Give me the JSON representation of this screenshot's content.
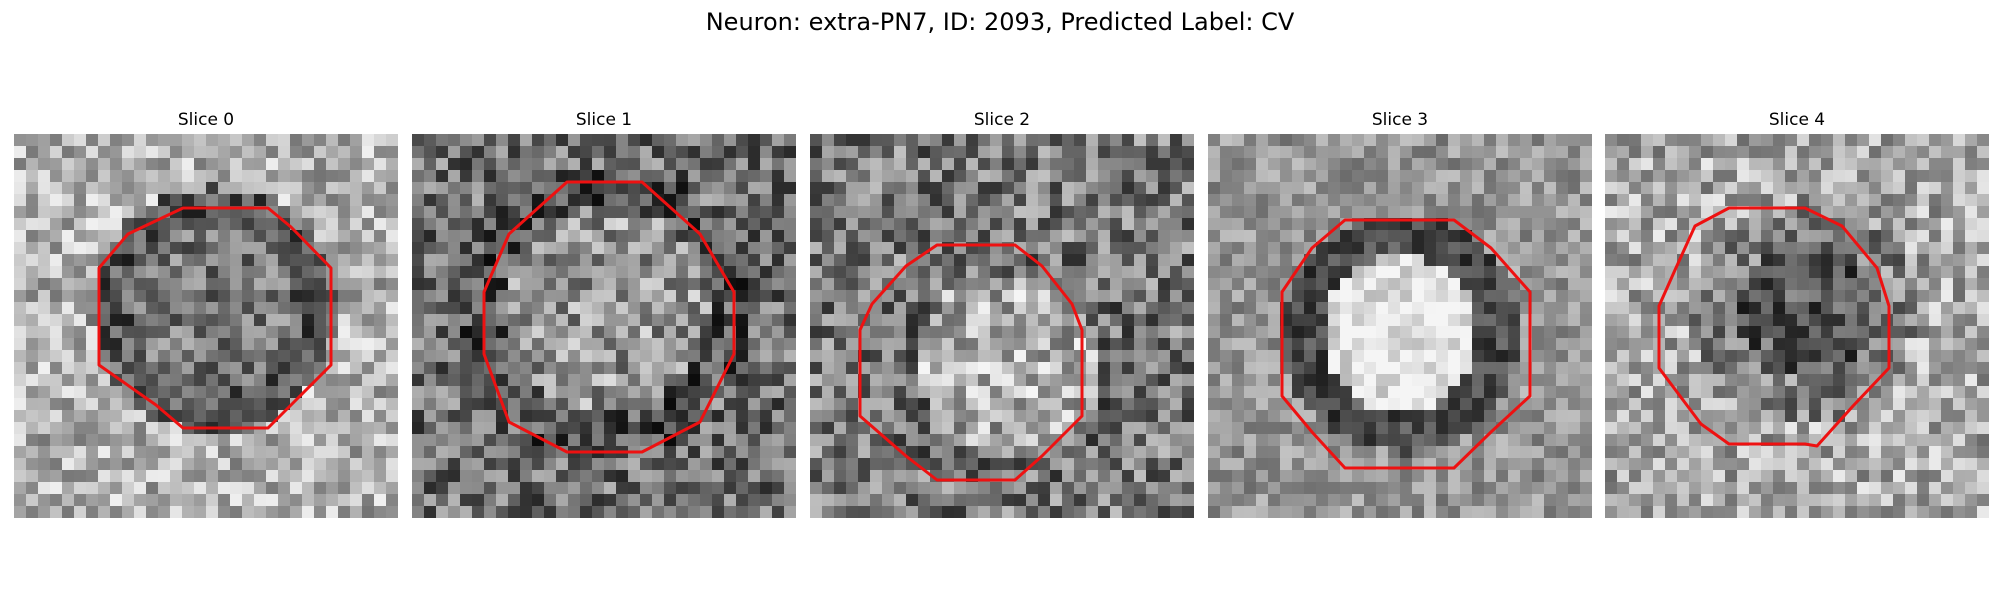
{
  "figure": {
    "title": "Neuron: extra-PN7, ID: 2093, Predicted Label: CV"
  },
  "contour_color": "#ee1111",
  "panels": [
    {
      "title": "Slice 0"
    },
    {
      "title": "Slice 1"
    },
    {
      "title": "Slice 2"
    },
    {
      "title": "Slice 3"
    },
    {
      "title": "Slice 4"
    }
  ]
}
